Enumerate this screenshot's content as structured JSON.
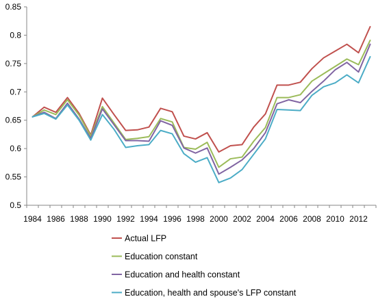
{
  "chart_data": {
    "type": "line",
    "x": [
      1984,
      1985,
      1986,
      1987,
      1988,
      1989,
      1990,
      1991,
      1992,
      1993,
      1994,
      1995,
      1996,
      1997,
      1998,
      1999,
      2000,
      2001,
      2002,
      2003,
      2004,
      2005,
      2006,
      2007,
      2008,
      2009,
      2010,
      2011,
      2012,
      2013
    ],
    "x_tick_labels": [
      "1984",
      "1986",
      "1988",
      "1990",
      "1992",
      "1994",
      "1996",
      "1998",
      "2000",
      "2002",
      "2004",
      "2006",
      "2008",
      "2010",
      "2012"
    ],
    "y_tick_labels": [
      "0.5",
      "0.55",
      "0.6",
      "0.65",
      "0.7",
      "0.75",
      "0.8",
      "0.85"
    ],
    "ylim": [
      0.5,
      0.85
    ],
    "grid": false,
    "legend_position": "bottom",
    "series": [
      {
        "name": "Actual LFP",
        "color": "#c0504d",
        "values": [
          0.656,
          0.673,
          0.664,
          0.69,
          0.662,
          0.624,
          0.689,
          0.66,
          0.632,
          0.633,
          0.638,
          0.671,
          0.665,
          0.622,
          0.617,
          0.628,
          0.594,
          0.605,
          0.607,
          0.638,
          0.661,
          0.712,
          0.712,
          0.717,
          0.741,
          0.76,
          0.772,
          0.784,
          0.769,
          0.815
        ]
      },
      {
        "name": "Education constant",
        "color": "#9bbb59",
        "values": [
          0.656,
          0.668,
          0.66,
          0.686,
          0.659,
          0.622,
          0.674,
          0.645,
          0.616,
          0.618,
          0.621,
          0.653,
          0.647,
          0.602,
          0.599,
          0.611,
          0.567,
          0.582,
          0.585,
          0.613,
          0.637,
          0.69,
          0.69,
          0.695,
          0.719,
          0.732,
          0.745,
          0.758,
          0.748,
          0.791
        ]
      },
      {
        "name": "Education and health constant",
        "color": "#8064a2",
        "values": [
          0.656,
          0.664,
          0.653,
          0.68,
          0.652,
          0.618,
          0.67,
          0.642,
          0.614,
          0.614,
          0.613,
          0.649,
          0.641,
          0.601,
          0.592,
          0.601,
          0.555,
          0.567,
          0.58,
          0.6,
          0.628,
          0.679,
          0.686,
          0.681,
          0.701,
          0.719,
          0.739,
          0.752,
          0.735,
          0.784
        ]
      },
      {
        "name": "Education, health and spouse's LFP constant",
        "color": "#4bacc6",
        "values": [
          0.656,
          0.662,
          0.652,
          0.677,
          0.65,
          0.615,
          0.66,
          0.634,
          0.602,
          0.605,
          0.607,
          0.632,
          0.626,
          0.591,
          0.576,
          0.584,
          0.54,
          0.548,
          0.563,
          0.59,
          0.617,
          0.669,
          0.668,
          0.667,
          0.694,
          0.709,
          0.716,
          0.73,
          0.716,
          0.762
        ]
      }
    ]
  }
}
